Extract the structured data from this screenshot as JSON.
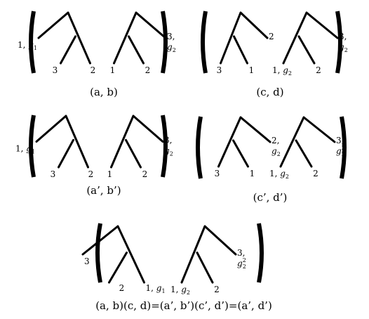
{
  "panels": [
    {
      "id": "ab",
      "caption": "(a, b)",
      "trees": [
        {
          "type": "comb-left",
          "leaves": [
            {
              "text": "1, ",
              "g": "g",
              "sub": "1",
              "sup": ""
            },
            {
              "text": "3"
            },
            {
              "text": "2"
            }
          ]
        },
        {
          "type": "comb-right",
          "leaves": [
            {
              "text": "1"
            },
            {
              "text": "2"
            },
            {
              "text": "3,",
              "g": "g",
              "sub": "2",
              "sup": "",
              "stacked": true
            }
          ]
        }
      ]
    },
    {
      "id": "cd",
      "caption": "(c, d)",
      "trees": [
        {
          "type": "comb-right",
          "leaves": [
            {
              "text": "3"
            },
            {
              "text": "1"
            },
            {
              "text": "2"
            }
          ]
        },
        {
          "type": "comb-right",
          "leaves": [
            {
              "text": "1, ",
              "g": "g",
              "sub": "2",
              "sup": ""
            },
            {
              "text": "2"
            },
            {
              "text": "3,",
              "g": "g",
              "sub": "2",
              "sup": "",
              "stacked": true
            }
          ]
        }
      ]
    },
    {
      "id": "apbp",
      "caption": "(a’, b’)",
      "trees": [
        {
          "type": "comb-left",
          "leaves": [
            {
              "text": "1, ",
              "g": "g",
              "sub": "1",
              "sup": ""
            },
            {
              "text": "3"
            },
            {
              "text": "2"
            }
          ]
        },
        {
          "type": "comb-right",
          "leaves": [
            {
              "text": "1"
            },
            {
              "text": "2"
            },
            {
              "text": "3,",
              "g": "g",
              "sub": "2",
              "sup": "",
              "stacked": true
            }
          ]
        }
      ]
    },
    {
      "id": "cpdp",
      "caption": "(c’, d’)",
      "trees": [
        {
          "type": "comb-right",
          "leaves": [
            {
              "text": "3"
            },
            {
              "text": "1"
            },
            {
              "text": "2,",
              "g": "g",
              "sub": "2",
              "sup": "",
              "stacked": true
            }
          ]
        },
        {
          "type": "comb-right",
          "leaves": [
            {
              "text": "1, ",
              "g": "g",
              "sub": "2",
              "sup": ""
            },
            {
              "text": "2"
            },
            {
              "text": "3,",
              "g": "g",
              "sub": "2",
              "sup": "2",
              "stacked": true
            }
          ]
        }
      ]
    },
    {
      "id": "product",
      "caption": "(a, b)(c, d)=(a’, b’)(c’, d’)=(a’, d’)",
      "trees": [
        {
          "type": "comb-left",
          "leaves": [
            {
              "text": "3"
            },
            {
              "text": "2"
            },
            {
              "text": "1, ",
              "g": "g",
              "sub": "1",
              "sup": ""
            }
          ]
        },
        {
          "type": "comb-right",
          "leaves": [
            {
              "text": "1, ",
              "g": "g",
              "sub": "2",
              "sup": ""
            },
            {
              "text": "2"
            },
            {
              "text": "3,",
              "g": "g",
              "sub": "2",
              "sup": "2",
              "stacked": true
            }
          ]
        }
      ]
    }
  ]
}
